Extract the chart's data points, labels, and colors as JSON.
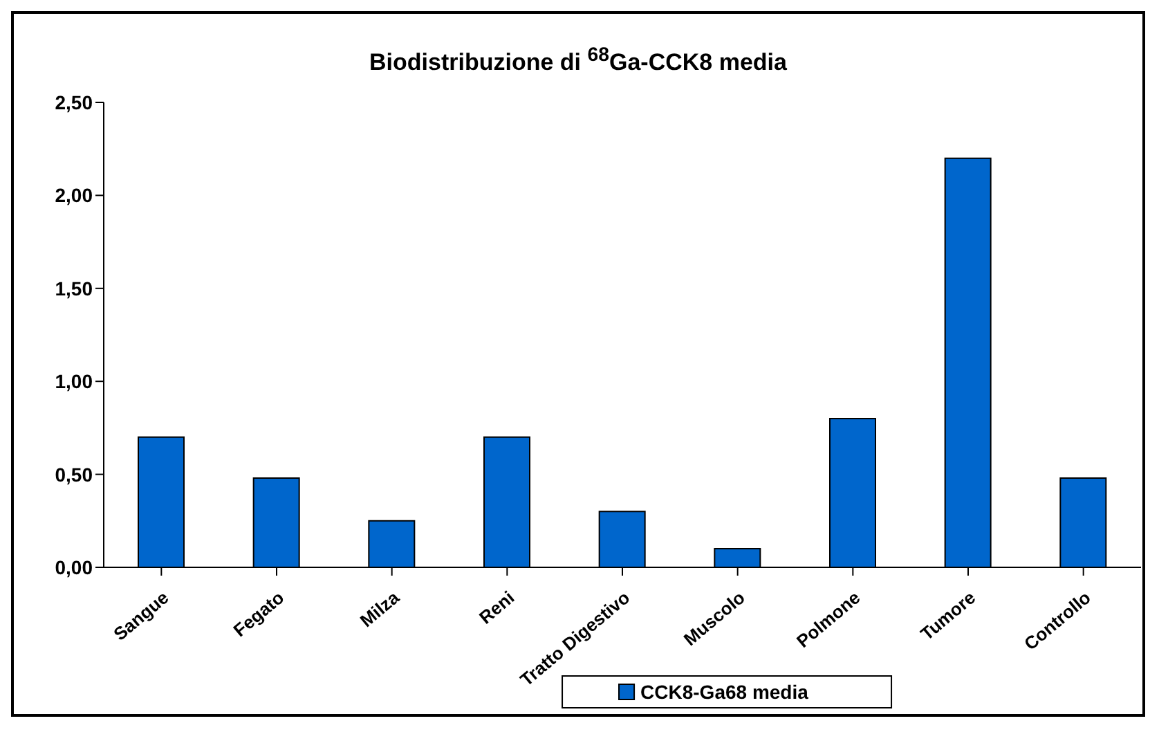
{
  "chart_data": {
    "type": "bar",
    "title": "Biodistribuzione di $^{68}$Ga-CCK8 media",
    "categories": [
      "Sangue",
      "Fegato",
      "Milza",
      "Reni",
      "Tratto Digestivo",
      "Muscolo",
      "Polmone",
      "Tumore",
      "Controllo"
    ],
    "series": [
      {
        "name": "CCK8-Ga68 media",
        "color": "#0066cc",
        "values": [
          0.7,
          0.48,
          0.25,
          0.7,
          0.3,
          0.1,
          0.8,
          2.2,
          0.48
        ]
      }
    ],
    "ylim": [
      0,
      2.5
    ],
    "yticks": [
      {
        "value": 0,
        "label": "0,00"
      },
      {
        "value": 0.5,
        "label": "0,50"
      },
      {
        "value": 1,
        "label": "1,00"
      },
      {
        "value": 1.5,
        "label": "1,50"
      },
      {
        "value": 2,
        "label": "2,00"
      },
      {
        "value": 2.5,
        "label": "2,50"
      }
    ],
    "grid": false,
    "legend": "bottom"
  }
}
